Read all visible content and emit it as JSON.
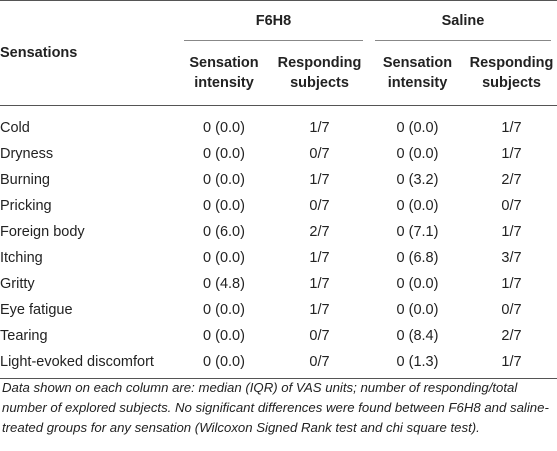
{
  "table": {
    "group_f6h8": "F6H8",
    "group_saline": "Saline",
    "col_sensations": "Sensations",
    "sub_intensity_line1": "Sensation",
    "sub_intensity_line2": "intensity",
    "sub_responding_line1": "Responding",
    "sub_responding_line2": "subjects",
    "rows": [
      {
        "name": "Cold",
        "f_int": "0 (0.0)",
        "f_resp": "1/7",
        "s_int": "0 (0.0)",
        "s_resp": "1/7"
      },
      {
        "name": "Dryness",
        "f_int": "0 (0.0)",
        "f_resp": "0/7",
        "s_int": "0 (0.0)",
        "s_resp": "1/7"
      },
      {
        "name": "Burning",
        "f_int": "0 (0.0)",
        "f_resp": "1/7",
        "s_int": "0 (3.2)",
        "s_resp": "2/7"
      },
      {
        "name": "Pricking",
        "f_int": "0 (0.0)",
        "f_resp": "0/7",
        "s_int": "0 (0.0)",
        "s_resp": "0/7"
      },
      {
        "name": "Foreign body",
        "f_int": "0 (6.0)",
        "f_resp": "2/7",
        "s_int": "0 (7.1)",
        "s_resp": "1/7"
      },
      {
        "name": "Itching",
        "f_int": "0 (0.0)",
        "f_resp": "1/7",
        "s_int": "0 (6.8)",
        "s_resp": "3/7"
      },
      {
        "name": "Gritty",
        "f_int": "0 (4.8)",
        "f_resp": "1/7",
        "s_int": "0 (0.0)",
        "s_resp": "1/7"
      },
      {
        "name": "Eye fatigue",
        "f_int": "0 (0.0)",
        "f_resp": "1/7",
        "s_int": "0 (0.0)",
        "s_resp": "0/7"
      },
      {
        "name": "Tearing",
        "f_int": "0 (0.0)",
        "f_resp": "0/7",
        "s_int": "0 (8.4)",
        "s_resp": "2/7"
      },
      {
        "name": "Light-evoked discomfort",
        "f_int": "0 (0.0)",
        "f_resp": "0/7",
        "s_int": "0 (1.3)",
        "s_resp": "1/7"
      }
    ]
  },
  "footnote": "Data shown on each column are: median (IQR) of VAS units; number of responding/total number of explored subjects. No significant differences were found between F6H8 and saline-treated groups for any sensation (Wilcoxon Signed Rank test and chi square test)."
}
